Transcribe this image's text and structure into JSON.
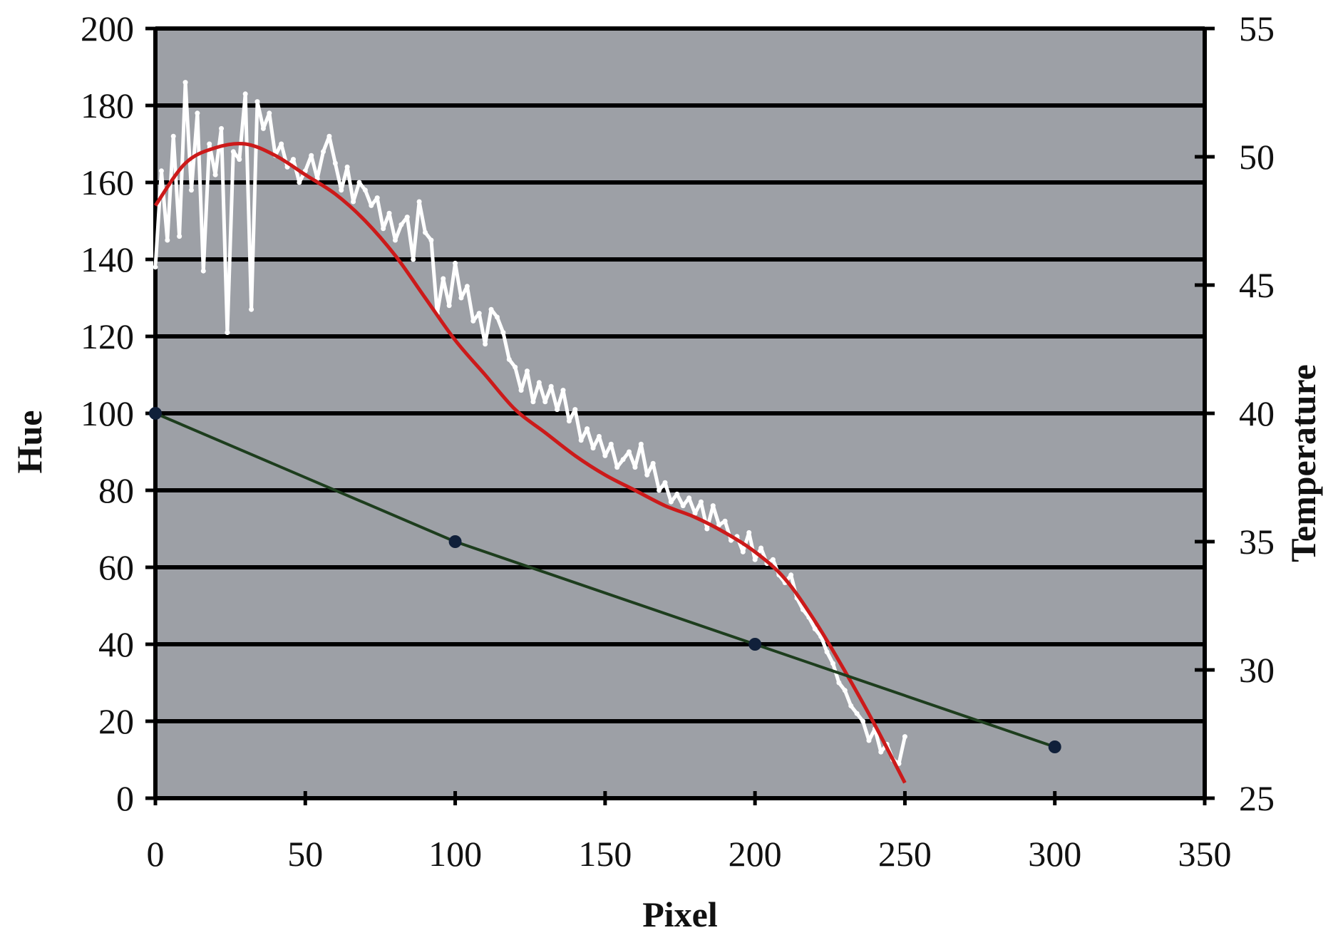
{
  "chart_data": {
    "type": "line",
    "title": "",
    "xlabel": "Pixel",
    "ylabel_left": "Hue",
    "ylabel_right": "Temperature",
    "xlim": [
      0,
      350
    ],
    "ylim_left": [
      0,
      200
    ],
    "ylim_right": [
      25,
      55
    ],
    "x_ticks": [
      "0",
      "50",
      "100",
      "150",
      "200",
      "250",
      "300",
      "350"
    ],
    "y_left_ticks": [
      "0",
      "20",
      "40",
      "60",
      "80",
      "100",
      "120",
      "140",
      "160",
      "180",
      "200"
    ],
    "y_right_ticks": [
      "25",
      "30",
      "35",
      "40",
      "45",
      "50",
      "55"
    ],
    "grid": true,
    "legend": "none",
    "colors": {
      "plot_background": "#9da0a6",
      "gridline": "#000000",
      "hue_raw": "#ffffff",
      "hue_fit": "#cc1a1a",
      "temperature": "#1d3d1d",
      "temperature_marker": "#10203a"
    },
    "series": [
      {
        "axis": "left",
        "style": "noisy-line",
        "x": [
          0,
          2,
          4,
          6,
          8,
          10,
          12,
          14,
          16,
          18,
          20,
          22,
          24,
          26,
          28,
          30,
          32,
          34,
          36,
          38,
          40,
          42,
          44,
          46,
          48,
          50,
          52,
          54,
          56,
          58,
          60,
          62,
          64,
          66,
          68,
          70,
          72,
          74,
          76,
          78,
          80,
          82,
          84,
          86,
          88,
          90,
          92,
          94,
          96,
          98,
          100,
          102,
          104,
          106,
          108,
          110,
          112,
          114,
          116,
          118,
          120,
          122,
          124,
          126,
          128,
          130,
          132,
          134,
          136,
          138,
          140,
          142,
          144,
          146,
          148,
          150,
          152,
          154,
          156,
          158,
          160,
          162,
          164,
          166,
          168,
          170,
          172,
          174,
          176,
          178,
          180,
          182,
          184,
          186,
          188,
          190,
          192,
          194,
          196,
          198,
          200,
          202,
          204,
          206,
          208,
          210,
          212,
          214,
          216,
          218,
          220,
          222,
          224,
          226,
          228,
          230,
          232,
          234,
          236,
          238,
          240,
          242,
          244,
          246,
          248,
          250
        ],
        "values": [
          138,
          163,
          145,
          172,
          146,
          186,
          158,
          178,
          137,
          170,
          162,
          174,
          121,
          168,
          166,
          183,
          127,
          181,
          174,
          178,
          167,
          170,
          164,
          166,
          160,
          163,
          167,
          161,
          168,
          172,
          165,
          158,
          164,
          155,
          160,
          158,
          154,
          156,
          148,
          152,
          145,
          149,
          151,
          140,
          155,
          147,
          145,
          126,
          135,
          128,
          139,
          130,
          133,
          124,
          126,
          118,
          127,
          125,
          121,
          114,
          112,
          106,
          111,
          103,
          108,
          103,
          107,
          101,
          106,
          98,
          101,
          93,
          96,
          91,
          94,
          89,
          92,
          86,
          88,
          90,
          86,
          92,
          84,
          87,
          80,
          82,
          77,
          79,
          76,
          78,
          74,
          77,
          70,
          76,
          71,
          72,
          67,
          68,
          64,
          69,
          62,
          65,
          61,
          62,
          58,
          56,
          58,
          52,
          49,
          47,
          44,
          42,
          38,
          35,
          30,
          28,
          24,
          22,
          20,
          15,
          18,
          12,
          14,
          10,
          9,
          16
        ]
      },
      {
        "axis": "left",
        "style": "smooth-fit",
        "x": [
          0,
          10,
          20,
          30,
          40,
          50,
          60,
          70,
          80,
          90,
          100,
          110,
          120,
          130,
          140,
          150,
          160,
          170,
          180,
          190,
          200,
          210,
          220,
          230,
          240,
          250
        ],
        "values": [
          154,
          165,
          169,
          170,
          167,
          162,
          157,
          150,
          141,
          130,
          119,
          110,
          101,
          95,
          89,
          84,
          80,
          76,
          73,
          69,
          64,
          57,
          46,
          33,
          19,
          4
        ]
      },
      {
        "axis": "right",
        "style": "line-markers",
        "x": [
          0,
          100,
          200,
          300
        ],
        "values": [
          40,
          35,
          31,
          27
        ]
      }
    ]
  }
}
